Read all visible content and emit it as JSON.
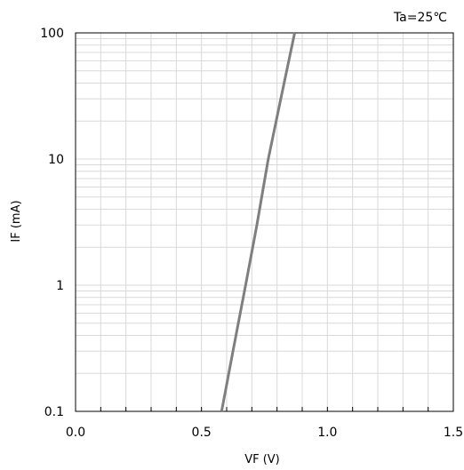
{
  "chart_data": {
    "type": "line",
    "xlabel": "VF (V)",
    "ylabel": "IF (mA)",
    "annotation": "Ta=25℃",
    "xlim": [
      0.0,
      1.5
    ],
    "ylim": [
      0.1,
      100
    ],
    "yscale": "log",
    "grid": true,
    "x_ticks": [
      "0.0",
      "0.5",
      "1.0",
      "1.5"
    ],
    "y_ticks": [
      "0.1",
      "1",
      "10",
      "100"
    ],
    "series": [
      {
        "color": "#7f7f7f",
        "points": [
          {
            "x": 0.58,
            "y": 0.1
          },
          {
            "x": 0.625,
            "y": 0.3
          },
          {
            "x": 0.675,
            "y": 1
          },
          {
            "x": 0.72,
            "y": 3
          },
          {
            "x": 0.765,
            "y": 10
          },
          {
            "x": 0.815,
            "y": 30
          },
          {
            "x": 0.87,
            "y": 100
          }
        ]
      }
    ]
  }
}
